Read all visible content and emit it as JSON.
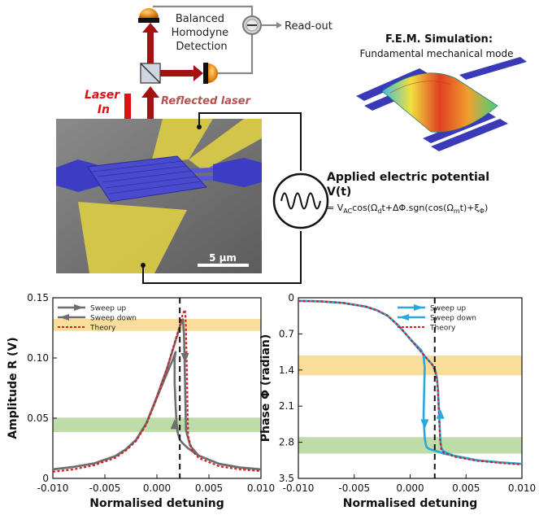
{
  "setup": {
    "bhd_label": [
      "Balanced",
      "Homodyne",
      "Detection"
    ],
    "readout_label": "Read-out",
    "laser_in_label": [
      "Laser",
      "In"
    ],
    "reflected_label": "Reflected laser",
    "scale_bar_label": "5 µm",
    "fem_title": "F.E.M. Simulation:",
    "fem_subtitle": "Fundamental mechanical mode",
    "potential_title": [
      "Applied electric potential",
      "V(t)"
    ],
    "potential_formula": {
      "eq": "= V",
      "ac": "AC",
      "cos1": "cos(Ω",
      "d": "d",
      "mid": "t+ΔΦ.sgn(cos(Ω",
      "m": "m",
      "end": "t)+ξ",
      "phi": "Φ",
      "close": ")"
    },
    "colors": {
      "laser": "#a51010",
      "laser_text": "#e01010",
      "reflected_text": "#b85050",
      "electrode": "#d8c848",
      "device": "#4a4acc"
    }
  },
  "chart_data": [
    {
      "type": "line",
      "ylabel": "Amplitude R (V)",
      "xlabel": "Normalised detuning",
      "xlim": [
        -0.01,
        0.01
      ],
      "ylim": [
        0,
        0.15
      ],
      "xticks": [
        "-0.010",
        "-0.005",
        "0.000",
        "0.005",
        "0.010"
      ],
      "xtick_values": [
        -0.01,
        -0.005,
        0.0,
        0.005,
        0.01
      ],
      "yticks": [
        "0",
        "0.05",
        "0.10",
        "0.15"
      ],
      "ytick_values": [
        0,
        0.05,
        0.1,
        0.15
      ],
      "y_inverted": false,
      "marker_x": 0.0022,
      "bands": [
        {
          "color": "#f6d27a",
          "y1": 0.1225,
          "y2": 0.1325
        },
        {
          "color": "#a8d08a",
          "y1": 0.0385,
          "y2": 0.0505
        }
      ],
      "legend": {
        "position": "top-left",
        "entries": [
          "Sweep up",
          "Sweep down",
          "Theory"
        ]
      },
      "series": [
        {
          "name": "Sweep up",
          "color": "#6e6e6e",
          "x": [
            -0.01,
            -0.008,
            -0.006,
            -0.004,
            -0.003,
            -0.002,
            -0.001,
            0.0,
            0.001,
            0.0015,
            0.002,
            0.0022,
            0.0024,
            0.0025,
            0.0026,
            0.0027,
            0.0028,
            0.0032,
            0.004,
            0.006,
            0.008,
            0.01
          ],
          "y": [
            0.0075,
            0.0095,
            0.0125,
            0.0185,
            0.024,
            0.032,
            0.046,
            0.068,
            0.092,
            0.106,
            0.12,
            0.126,
            0.131,
            0.132,
            0.12,
            0.08,
            0.04,
            0.027,
            0.019,
            0.012,
            0.009,
            0.0075
          ]
        },
        {
          "name": "Sweep down",
          "color": "#6e6e6e",
          "x": [
            0.01,
            0.008,
            0.006,
            0.004,
            0.003,
            0.0025,
            0.0022,
            0.002,
            0.0019,
            0.0018,
            0.0017,
            0.0017,
            0.0018,
            0.0015,
            0.001,
            0.0,
            -0.001,
            -0.002,
            -0.003,
            -0.004,
            -0.006,
            -0.008,
            -0.01
          ],
          "y": [
            0.0075,
            0.009,
            0.012,
            0.019,
            0.025,
            0.029,
            0.032,
            0.038,
            0.045,
            0.06,
            0.08,
            0.1,
            0.105,
            0.098,
            0.088,
            0.067,
            0.046,
            0.032,
            0.024,
            0.0185,
            0.0125,
            0.0095,
            0.0075
          ]
        },
        {
          "name": "Theory",
          "color": "#d42020",
          "dashed": true,
          "x": [
            -0.01,
            -0.008,
            -0.006,
            -0.004,
            -0.003,
            -0.002,
            -0.001,
            0.0,
            0.001,
            0.0015,
            0.002,
            0.0023,
            0.0025,
            0.0027,
            0.0028,
            0.0029,
            0.003,
            0.0034,
            0.004,
            0.006,
            0.008,
            0.01
          ],
          "y": [
            0.0055,
            0.0075,
            0.011,
            0.017,
            0.023,
            0.031,
            0.045,
            0.067,
            0.092,
            0.107,
            0.121,
            0.13,
            0.137,
            0.14,
            0.125,
            0.08,
            0.035,
            0.023,
            0.017,
            0.01,
            0.0075,
            0.006
          ]
        }
      ]
    },
    {
      "type": "line",
      "ylabel": "Phase Φ (radian)",
      "xlabel": "Normalised detuning",
      "xlim": [
        -0.01,
        0.01
      ],
      "ylim": [
        0,
        3.5
      ],
      "xticks": [
        "-0.010",
        "-0.005",
        "0.000",
        "0.005",
        "0.010"
      ],
      "xtick_values": [
        -0.01,
        -0.005,
        0.0,
        0.005,
        0.01
      ],
      "yticks": [
        "0",
        "0.7",
        "1.4",
        "2.1",
        "2.8",
        "3.5"
      ],
      "ytick_values": [
        0,
        0.7,
        1.4,
        2.1,
        2.8,
        3.5
      ],
      "y_inverted": true,
      "marker_x": 0.0022,
      "bands": [
        {
          "color": "#f6d27a",
          "y1": 1.12,
          "y2": 1.5
        },
        {
          "color": "#a8d08a",
          "y1": 2.7,
          "y2": 3.02
        }
      ],
      "legend": {
        "position": "top-right",
        "entries": [
          "Sweep up",
          "Sweep down",
          "Theory"
        ]
      },
      "series": [
        {
          "name": "Sweep up",
          "color": "#29a8dd",
          "x": [
            -0.01,
            -0.008,
            -0.006,
            -0.004,
            -0.003,
            -0.002,
            -0.001,
            0.0,
            0.001,
            0.0015,
            0.002,
            0.0022,
            0.0024,
            0.0025,
            0.0026,
            0.0027,
            0.0028,
            0.003,
            0.004,
            0.006,
            0.008,
            0.01
          ],
          "y": [
            0.06,
            0.07,
            0.1,
            0.17,
            0.24,
            0.35,
            0.55,
            0.8,
            1.05,
            1.18,
            1.3,
            1.38,
            1.55,
            1.8,
            2.3,
            2.75,
            2.92,
            2.98,
            3.07,
            3.15,
            3.19,
            3.22
          ]
        },
        {
          "name": "Sweep down",
          "color": "#29a8dd",
          "x": [
            0.01,
            0.008,
            0.006,
            0.004,
            0.003,
            0.0025,
            0.002,
            0.0017,
            0.0015,
            0.0014,
            0.0013,
            0.0012,
            0.0013,
            0.0012,
            0.001,
            0.0,
            -0.001,
            -0.002,
            -0.003,
            -0.004,
            -0.006,
            -0.008,
            -0.01
          ],
          "y": [
            3.22,
            3.19,
            3.15,
            3.06,
            3.02,
            2.98,
            2.95,
            2.93,
            2.9,
            2.85,
            2.7,
            2.3,
            1.35,
            1.12,
            1.02,
            0.8,
            0.55,
            0.35,
            0.24,
            0.17,
            0.1,
            0.07,
            0.06
          ]
        },
        {
          "name": "Theory",
          "color": "#d42020",
          "dashed": true,
          "x": [
            -0.01,
            -0.008,
            -0.006,
            -0.004,
            -0.003,
            -0.002,
            -0.001,
            0.0,
            0.001,
            0.0015,
            0.002,
            0.0022,
            0.0024,
            0.0025,
            0.0026,
            0.0027,
            0.0028,
            0.003,
            0.004,
            0.006,
            0.008,
            0.01
          ],
          "y": [
            0.06,
            0.07,
            0.1,
            0.17,
            0.24,
            0.35,
            0.55,
            0.8,
            1.05,
            1.18,
            1.3,
            1.4,
            1.6,
            1.9,
            2.4,
            2.8,
            2.95,
            3.0,
            3.08,
            3.16,
            3.2,
            3.23
          ]
        }
      ]
    }
  ]
}
